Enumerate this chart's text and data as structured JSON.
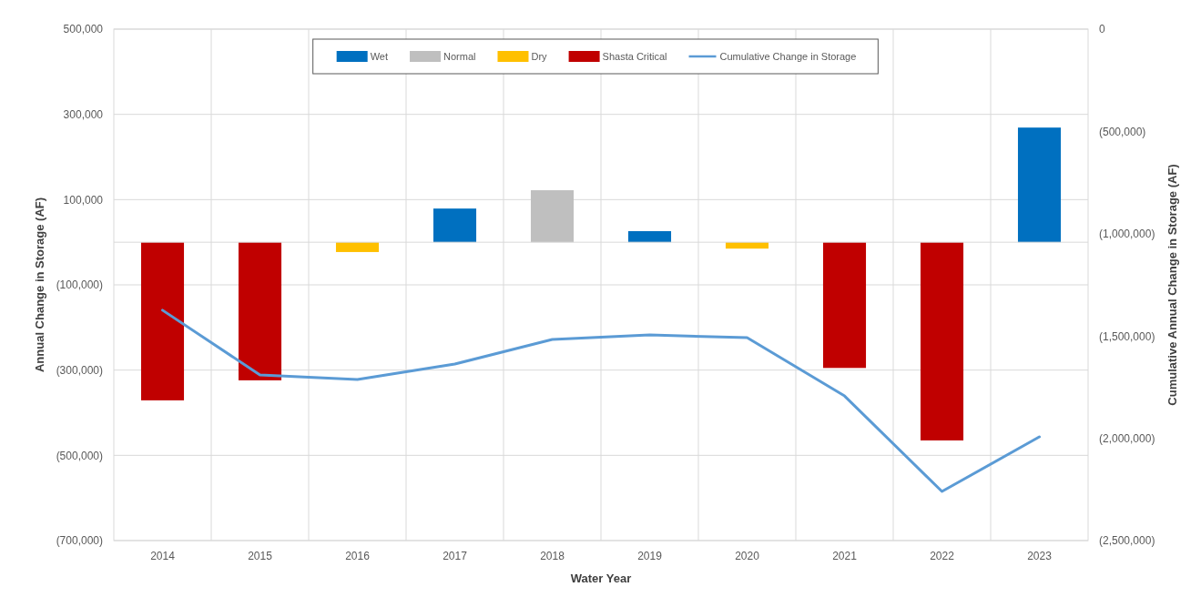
{
  "chart_data": {
    "type": "bar",
    "xlabel": "Water Year",
    "ylabel": "Annual Change in Storage (AF)",
    "y2label": "Cumulative Annual Change in Storage (AF)",
    "categories": [
      "2014",
      "2015",
      "2016",
      "2017",
      "2018",
      "2019",
      "2020",
      "2021",
      "2022",
      "2023"
    ],
    "series": [
      {
        "name": "Wet",
        "color": "#0070c0",
        "values": [
          null,
          null,
          null,
          79000,
          null,
          26000,
          null,
          null,
          null,
          269000
        ]
      },
      {
        "name": "Normal",
        "color": "#bfbfbf",
        "values": [
          null,
          null,
          null,
          null,
          122000,
          null,
          null,
          null,
          null,
          null
        ]
      },
      {
        "name": "Dry",
        "color": "#ffc000",
        "values": [
          null,
          null,
          -23000,
          null,
          null,
          null,
          -15000,
          null,
          null,
          null
        ]
      },
      {
        "name": "Shasta Critical",
        "color": "#c00000",
        "values": [
          -371000,
          -324000,
          null,
          null,
          null,
          null,
          null,
          -295000,
          -465000,
          null
        ]
      },
      {
        "name": "Cumulative Change in Storage",
        "type": "line",
        "axis": "y2",
        "color": "#5b9bd5",
        "values": [
          -1374000,
          -1690000,
          -1713000,
          -1637000,
          -1517000,
          -1495000,
          -1508000,
          -1793000,
          -2260000,
          -1993000
        ]
      }
    ],
    "ylim": [
      -700000,
      500000
    ],
    "yticks": [
      {
        "value": -700000,
        "label": "(700,000)"
      },
      {
        "value": -500000,
        "label": "(500,000)"
      },
      {
        "value": -300000,
        "label": "(300,000)"
      },
      {
        "value": -100000,
        "label": "(100,000)"
      },
      {
        "value": 100000,
        "label": "100,000"
      },
      {
        "value": 300000,
        "label": "300,000"
      },
      {
        "value": 500000,
        "label": "500,000"
      }
    ],
    "y2lim": [
      -2500000,
      0
    ],
    "y2ticks": [
      {
        "value": -2500000,
        "label": "(2,500,000)"
      },
      {
        "value": -2000000,
        "label": "(2,000,000)"
      },
      {
        "value": -1500000,
        "label": "(1,500,000)"
      },
      {
        "value": -1000000,
        "label": "(1,000,000)"
      },
      {
        "value": -500000,
        "label": "(500,000)"
      },
      0
    ],
    "grid": true,
    "legend": "top",
    "marker": "none",
    "line_style": "solid"
  }
}
